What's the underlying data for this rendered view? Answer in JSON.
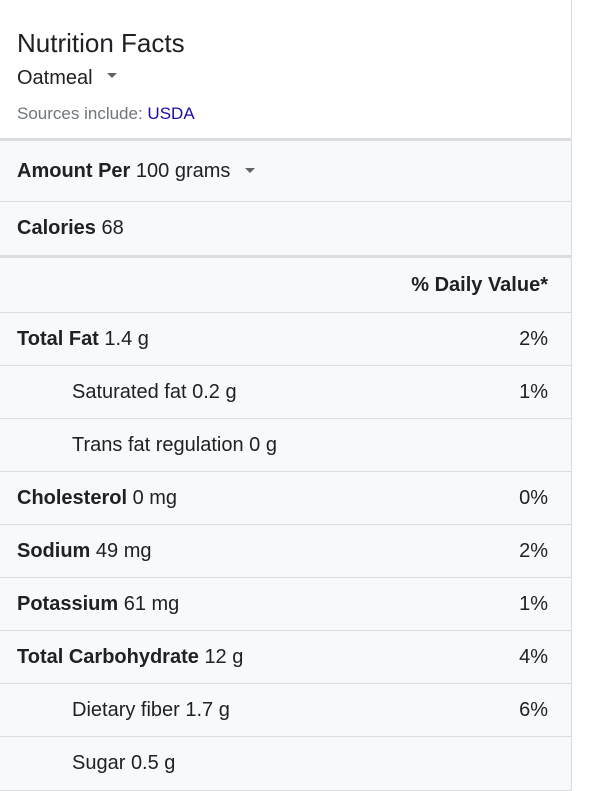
{
  "header": {
    "title": "Nutrition Facts",
    "food": "Oatmeal",
    "sources_prefix": "Sources include:",
    "sources_link": "USDA"
  },
  "amount": {
    "label": "Amount Per",
    "serving": "100 grams"
  },
  "calories": {
    "label": "Calories",
    "value": "68"
  },
  "daily_value_header": "% Daily Value*",
  "nutrients": [
    {
      "name": "Total Fat",
      "amount": "1.4 g",
      "dv": "2%"
    },
    {
      "name": "Saturated fat",
      "amount": "0.2 g",
      "dv": "1%"
    },
    {
      "name": "Trans fat regulation",
      "amount": "0 g",
      "dv": ""
    },
    {
      "name": "Cholesterol",
      "amount": "0 mg",
      "dv": "0%"
    },
    {
      "name": "Sodium",
      "amount": "49 mg",
      "dv": "2%"
    },
    {
      "name": "Potassium",
      "amount": "61 mg",
      "dv": "1%"
    },
    {
      "name": "Total Carbohydrate",
      "amount": "12 g",
      "dv": "4%"
    },
    {
      "name": "Dietary fiber",
      "amount": "1.7 g",
      "dv": "6%"
    },
    {
      "name": "Sugar",
      "amount": "0.5 g",
      "dv": ""
    }
  ],
  "colors": {
    "link": "#1a0dab",
    "row_background": "#f8f9fa",
    "divider": "#dadce0"
  }
}
